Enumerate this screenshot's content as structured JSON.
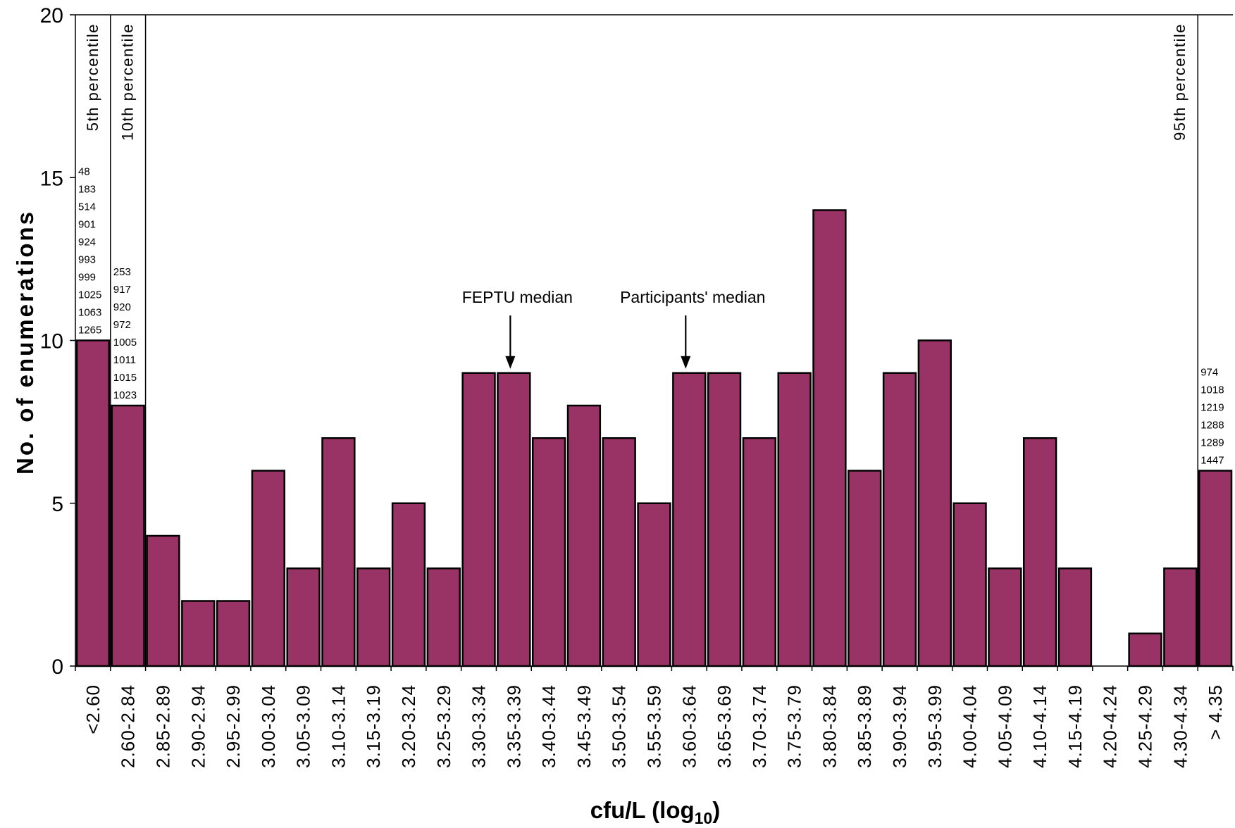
{
  "chart_data": {
    "type": "bar",
    "title": "",
    "xlabel": "cfu/L (log",
    "xlabel_subscript": "10",
    "xlabel_suffix": ")",
    "ylabel": "No. of enumerations",
    "ylim": [
      0,
      20
    ],
    "yticks": [
      "0",
      "5",
      "10",
      "15",
      "20"
    ],
    "bar_color": "#993366",
    "grid": false,
    "categories": [
      "<2.60",
      "2.60-2.84",
      "2.85-2.89",
      "2.90-2.94",
      "2.95-2.99",
      "3.00-3.04",
      "3.05-3.09",
      "3.10-3.14",
      "3.15-3.19",
      "3.20-3.24",
      "3.25-3.29",
      "3.30-3.34",
      "3.35-3.39",
      "3.40-3.44",
      "3.45-3.49",
      "3.50-3.54",
      "3.55-3.59",
      "3.60-3.64",
      "3.65-3.69",
      "3.70-3.74",
      "3.75-3.79",
      "3.80-3.84",
      "3.85-3.89",
      "3.90-3.94",
      "3.95-3.99",
      "4.00-4.04",
      "4.05-4.09",
      "4.10-4.14",
      "4.15-4.19",
      "4.20-4.24",
      "4.25-4.29",
      "4.30-4.34",
      "> 4.35"
    ],
    "values": [
      10,
      8,
      4,
      2,
      2,
      6,
      3,
      7,
      3,
      5,
      3,
      9,
      9,
      7,
      8,
      7,
      5,
      9,
      9,
      7,
      9,
      14,
      6,
      9,
      10,
      5,
      3,
      7,
      3,
      0,
      1,
      3,
      6
    ],
    "percentile_lines": [
      {
        "label": "5th percentile",
        "after_category": 0
      },
      {
        "label": "10th percentile",
        "after_category": 1
      },
      {
        "label": "95th percentile",
        "after_category": 31
      }
    ],
    "bar_id_lists": [
      {
        "category": 0,
        "ids": [
          "48",
          "183",
          "514",
          "901",
          "924",
          "993",
          "999",
          "1025",
          "1063",
          "1265"
        ]
      },
      {
        "category": 1,
        "ids": [
          "253",
          "917",
          "920",
          "972",
          "1005",
          "1011",
          "1015",
          "1023"
        ]
      },
      {
        "category": 32,
        "ids": [
          "974",
          "1018",
          "1219",
          "1288",
          "1289",
          "1447"
        ]
      }
    ],
    "annotations": [
      {
        "text": "FEPTU median",
        "category": 12
      },
      {
        "text": "Participants' median",
        "category": 17
      }
    ]
  }
}
